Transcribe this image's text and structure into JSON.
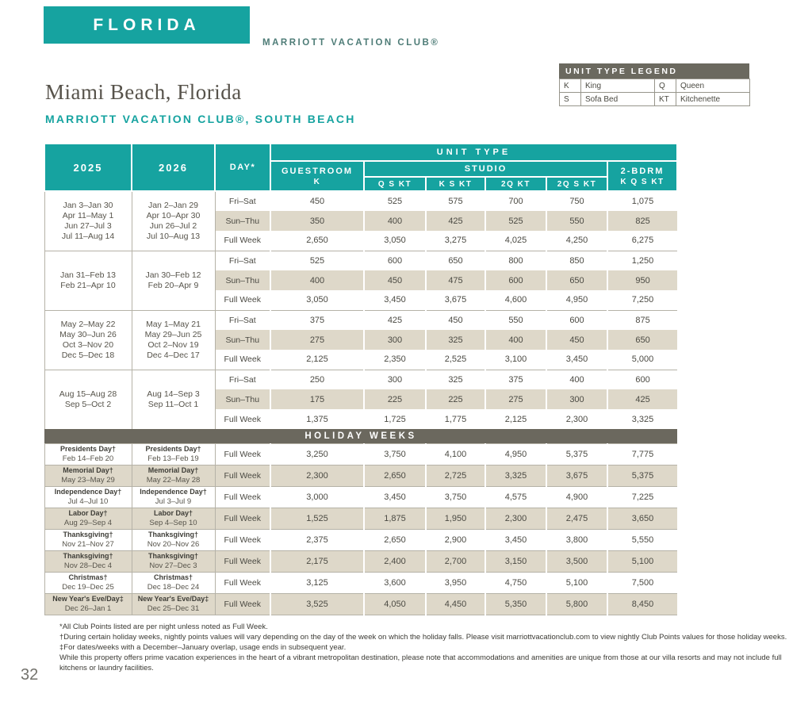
{
  "page": {
    "region": "FLORIDA",
    "brand": "MARRIOTT VACATION CLUB®",
    "title": "Miami Beach, Florida",
    "subtitle": "MARRIOTT VACATION CLUB®, SOUTH BEACH",
    "page_number": "32"
  },
  "colors": {
    "teal": "#16a3a0",
    "beige_row": "#ded8c9",
    "dark_band": "#6b685e",
    "border_gray": "#b5b2a7"
  },
  "legend": {
    "title": "UNIT TYPE LEGEND",
    "rows": [
      [
        {
          "code": "K",
          "label": "King"
        },
        {
          "code": "Q",
          "label": "Queen"
        }
      ],
      [
        {
          "code": "S",
          "label": "Sofa Bed"
        },
        {
          "code": "KT",
          "label": "Kitchenette"
        }
      ]
    ]
  },
  "table": {
    "col_2025": "2025",
    "col_2026": "2026",
    "col_day": "DAY*",
    "unit_type": "UNIT TYPE",
    "groups": [
      {
        "label": "GUESTROOM",
        "subs": [
          "K"
        ]
      },
      {
        "label": "STUDIO",
        "subs": [
          "Q S KT",
          "K S KT",
          "2Q KT",
          "2Q S KT"
        ]
      },
      {
        "label": "2-BDRM",
        "subs": [
          "K Q S KT"
        ]
      }
    ],
    "seasons": [
      {
        "dates_2025": [
          "Jan 3–Jan 30",
          "Apr 11–May 1",
          "Jun 27–Jul 3",
          "Jul 11–Aug 14"
        ],
        "dates_2026": [
          "Jan 2–Jan 29",
          "Apr 10–Apr 30",
          "Jun 26–Jul 2",
          "Jul 10–Aug 13"
        ],
        "rows": [
          {
            "day": "Fri–Sat",
            "values": [
              "450",
              "525",
              "575",
              "700",
              "750",
              "1,075"
            ]
          },
          {
            "day": "Sun–Thu",
            "values": [
              "350",
              "400",
              "425",
              "525",
              "550",
              "825"
            ]
          },
          {
            "day": "Full Week",
            "values": [
              "2,650",
              "3,050",
              "3,275",
              "4,025",
              "4,250",
              "6,275"
            ]
          }
        ]
      },
      {
        "dates_2025": [
          "Jan 31–Feb 13",
          "Feb 21–Apr 10"
        ],
        "dates_2026": [
          "Jan 30–Feb 12",
          "Feb 20–Apr 9"
        ],
        "rows": [
          {
            "day": "Fri–Sat",
            "values": [
              "525",
              "600",
              "650",
              "800",
              "850",
              "1,250"
            ]
          },
          {
            "day": "Sun–Thu",
            "values": [
              "400",
              "450",
              "475",
              "600",
              "650",
              "950"
            ]
          },
          {
            "day": "Full Week",
            "values": [
              "3,050",
              "3,450",
              "3,675",
              "4,600",
              "4,950",
              "7,250"
            ]
          }
        ]
      },
      {
        "dates_2025": [
          "May 2–May 22",
          "May 30–Jun 26",
          "Oct 3–Nov 20",
          "Dec 5–Dec 18"
        ],
        "dates_2026": [
          "May 1–May 21",
          "May 29–Jun 25",
          "Oct 2–Nov 19",
          "Dec 4–Dec 17"
        ],
        "rows": [
          {
            "day": "Fri–Sat",
            "values": [
              "375",
              "425",
              "450",
              "550",
              "600",
              "875"
            ]
          },
          {
            "day": "Sun–Thu",
            "values": [
              "275",
              "300",
              "325",
              "400",
              "450",
              "650"
            ]
          },
          {
            "day": "Full Week",
            "values": [
              "2,125",
              "2,350",
              "2,525",
              "3,100",
              "3,450",
              "5,000"
            ]
          }
        ]
      },
      {
        "dates_2025": [
          "Aug 15–Aug 28",
          "Sep 5–Oct 2"
        ],
        "dates_2026": [
          "Aug 14–Sep 3",
          "Sep 11–Oct 1"
        ],
        "rows": [
          {
            "day": "Fri–Sat",
            "values": [
              "250",
              "300",
              "325",
              "375",
              "400",
              "600"
            ]
          },
          {
            "day": "Sun–Thu",
            "values": [
              "175",
              "225",
              "225",
              "275",
              "300",
              "425"
            ]
          },
          {
            "day": "Full Week",
            "values": [
              "1,375",
              "1,725",
              "1,775",
              "2,125",
              "2,300",
              "3,325"
            ]
          }
        ]
      }
    ],
    "holiday_header": "HOLIDAY WEEKS",
    "holidays": [
      {
        "name": "Presidents Day†",
        "date_2025": "Feb 14–Feb 20",
        "date_2026": "Feb 13–Feb 19",
        "day": "Full Week",
        "values": [
          "3,250",
          "3,750",
          "4,100",
          "4,950",
          "5,375",
          "7,775"
        ]
      },
      {
        "name": "Memorial Day†",
        "date_2025": "May 23–May 29",
        "date_2026": "May 22–May 28",
        "day": "Full Week",
        "values": [
          "2,300",
          "2,650",
          "2,725",
          "3,325",
          "3,675",
          "5,375"
        ]
      },
      {
        "name": "Independence Day†",
        "date_2025": "Jul 4–Jul 10",
        "date_2026": "Jul 3–Jul 9",
        "day": "Full Week",
        "values": [
          "3,000",
          "3,450",
          "3,750",
          "4,575",
          "4,900",
          "7,225"
        ]
      },
      {
        "name": "Labor Day†",
        "date_2025": "Aug 29–Sep 4",
        "date_2026": "Sep 4–Sep 10",
        "day": "Full Week",
        "values": [
          "1,525",
          "1,875",
          "1,950",
          "2,300",
          "2,475",
          "3,650"
        ]
      },
      {
        "name": "Thanksgiving†",
        "date_2025": "Nov 21–Nov 27",
        "date_2026": "Nov 20–Nov 26",
        "day": "Full Week",
        "values": [
          "2,375",
          "2,650",
          "2,900",
          "3,450",
          "3,800",
          "5,550"
        ]
      },
      {
        "name": "Thanksgiving†",
        "date_2025": "Nov 28–Dec 4",
        "date_2026": "Nov 27–Dec 3",
        "day": "Full Week",
        "values": [
          "2,175",
          "2,400",
          "2,700",
          "3,150",
          "3,500",
          "5,100"
        ]
      },
      {
        "name": "Christmas†",
        "date_2025": "Dec 19–Dec 25",
        "date_2026": "Dec 18–Dec 24",
        "day": "Full Week",
        "values": [
          "3,125",
          "3,600",
          "3,950",
          "4,750",
          "5,100",
          "7,500"
        ]
      },
      {
        "name": "New Year's Eve/Day‡",
        "date_2025": "Dec 26–Jan 1",
        "date_2026": "Dec 25–Dec 31",
        "day": "Full Week",
        "values": [
          "3,525",
          "4,050",
          "4,450",
          "5,350",
          "5,800",
          "8,450"
        ]
      }
    ]
  },
  "footnotes": [
    "*All Club Points listed are per night unless noted as Full Week.",
    "†During certain holiday weeks, nightly points values will vary depending on the day of the week on which the holiday falls. Please visit marriottvacationclub.com to view nightly Club Points values for those holiday weeks.",
    "‡For dates/weeks with a December–January overlap, usage ends in subsequent year.",
    "While this property offers prime vacation experiences in the heart of a vibrant metropolitan destination, please note that accommodations and amenities are unique from those at our villa resorts and may not include full kitchens or laundry facilities."
  ]
}
